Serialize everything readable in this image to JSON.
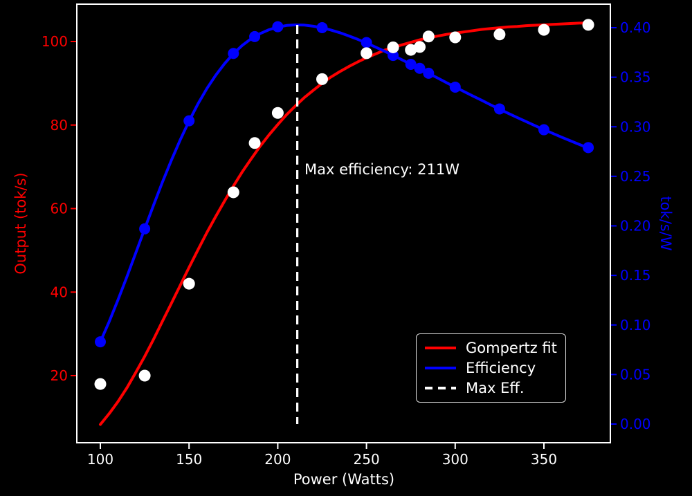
{
  "figure": {
    "background": "#000000",
    "xlabel": "Power (Watts)",
    "ylabel_left": "Output (tok/s)",
    "ylabel_right": "tok/s/W",
    "annotation": "Max efficiency: 211W",
    "colors": {
      "fit_line": "#ff0000",
      "efficiency_line": "#0000ff",
      "scatter": "#ffffff",
      "spine": "#ffffff",
      "vline": "#ffffff",
      "left_axis_text": "#ff0000",
      "right_axis_text": "#0000ff",
      "bottom_axis_text": "#ffffff",
      "legend_edge": "#d9d9d9"
    },
    "legend": [
      {
        "label": "Gompertz fit",
        "color": "#ff0000",
        "style": "solid"
      },
      {
        "label": "Efficiency",
        "color": "#0000ff",
        "style": "solid"
      },
      {
        "label": "Max Eff.",
        "color": "#ffffff",
        "style": "dashed"
      }
    ]
  },
  "chart_data": {
    "type": "line",
    "title": "",
    "xlabel": "Power (Watts)",
    "ylabel_left": "Output (tok/s)",
    "ylabel_right": "tok/s/W",
    "xlim": [
      87,
      388
    ],
    "ylim_left": [
      3.5,
      109
    ],
    "ylim_right": [
      -0.018,
      0.424
    ],
    "xticks": [
      100,
      150,
      200,
      250,
      300,
      350
    ],
    "yticks_left": [
      20,
      40,
      60,
      80,
      100
    ],
    "yticks_right": [
      "0.00",
      "0.05",
      "0.10",
      "0.15",
      "0.20",
      "0.25",
      "0.30",
      "0.35",
      "0.40"
    ],
    "grid": false,
    "legend_position": "lower right",
    "max_efficiency_power": 211,
    "annotation": "Max efficiency: 211W",
    "series": {
      "scatter_output": {
        "name": "Measured output (tok/s)",
        "axis": "left",
        "marker": "circle",
        "color": "#ffffff",
        "x": [
          100,
          125,
          150,
          175,
          187,
          200,
          225,
          250,
          265,
          275,
          280,
          285,
          300,
          325,
          350,
          375
        ],
        "y": [
          18.0,
          20.0,
          42.0,
          63.9,
          75.7,
          82.9,
          91.0,
          97.2,
          98.6,
          98.0,
          98.7,
          101.2,
          101.0,
          101.7,
          102.8,
          104.0
        ]
      },
      "efficiency_markers": {
        "name": "Efficiency (tok/s/W)",
        "axis": "right",
        "marker": "circle",
        "color": "#0000ff",
        "x": [
          100,
          125,
          150,
          175,
          187,
          200,
          225,
          250,
          265,
          275,
          280,
          285,
          300,
          325,
          350,
          375
        ],
        "y": [
          0.083,
          0.197,
          0.306,
          0.374,
          0.391,
          0.401,
          0.4,
          0.385,
          0.372,
          0.363,
          0.359,
          0.354,
          0.34,
          0.318,
          0.297,
          0.279
        ]
      },
      "gompertz_fit": {
        "name": "Gompertz fit",
        "axis": "left",
        "color": "#ff0000",
        "x": [
          100,
          105,
          110,
          115,
          120,
          125,
          130,
          135,
          140,
          145,
          150,
          155,
          160,
          165,
          170,
          175,
          180,
          185,
          190,
          195,
          200,
          205,
          210,
          215,
          220,
          225,
          230,
          235,
          240,
          245,
          250,
          255,
          260,
          265,
          270,
          275,
          280,
          285,
          290,
          295,
          300,
          305,
          310,
          315,
          320,
          325,
          330,
          335,
          340,
          345,
          350,
          355,
          360,
          365,
          370,
          375
        ],
        "y": [
          8.3,
          10.9,
          13.8,
          17.1,
          20.8,
          24.6,
          28.7,
          33.0,
          37.3,
          41.6,
          45.9,
          50.1,
          54.2,
          58.1,
          61.8,
          65.4,
          68.8,
          71.9,
          74.9,
          77.6,
          80.1,
          82.5,
          84.6,
          86.6,
          88.3,
          90.0,
          91.5,
          92.8,
          94.0,
          95.1,
          96.1,
          97.0,
          97.9,
          98.6,
          99.2,
          99.8,
          100.4,
          100.9,
          101.3,
          101.7,
          102.0,
          102.3,
          102.6,
          102.9,
          103.1,
          103.3,
          103.5,
          103.6,
          103.8,
          103.9,
          104.0,
          104.1,
          104.2,
          104.3,
          104.4,
          104.4
        ]
      },
      "efficiency_curve": {
        "name": "Efficiency curve",
        "axis": "right",
        "color": "#0000ff",
        "x": [
          100,
          105,
          110,
          115,
          120,
          125,
          130,
          135,
          140,
          145,
          150,
          155,
          160,
          165,
          170,
          175,
          180,
          185,
          190,
          195,
          200,
          205,
          210,
          215,
          220,
          225,
          230,
          235,
          240,
          245,
          250,
          255,
          260,
          265,
          270,
          275,
          280,
          285,
          290,
          295,
          300,
          305,
          310,
          315,
          320,
          325,
          330,
          335,
          340,
          345,
          350,
          355,
          360,
          365,
          370,
          375
        ],
        "y": [
          0.083,
          0.1034,
          0.1255,
          0.1488,
          0.1729,
          0.1971,
          0.2209,
          0.2441,
          0.2661,
          0.2867,
          0.3057,
          0.323,
          0.3384,
          0.352,
          0.3637,
          0.3738,
          0.3821,
          0.3888,
          0.394,
          0.3979,
          0.4006,
          0.4022,
          0.4028,
          0.4026,
          0.4015,
          0.3999,
          0.3976,
          0.3949,
          0.3917,
          0.3883,
          0.3845,
          0.3805,
          0.3764,
          0.372,
          0.3676,
          0.3631,
          0.3585,
          0.3539,
          0.3493,
          0.3446,
          0.3401,
          0.3355,
          0.331,
          0.3266,
          0.3221,
          0.3178,
          0.3135,
          0.3093,
          0.3052,
          0.3011,
          0.2972,
          0.2933,
          0.2895,
          0.2858,
          0.2821,
          0.2785
        ]
      },
      "max_eff_vline": {
        "name": "Max Eff.",
        "x": 211,
        "style": "dashed",
        "color": "#ffffff"
      }
    }
  }
}
